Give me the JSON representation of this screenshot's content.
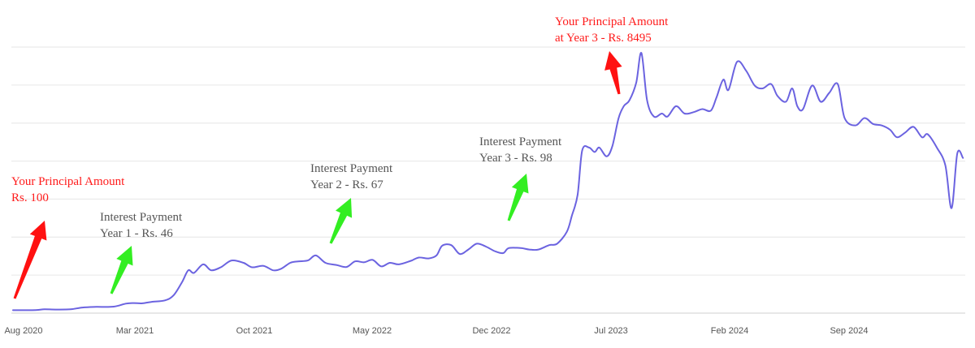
{
  "chart_data": {
    "type": "line",
    "title": "",
    "xlabel": "",
    "ylabel": "",
    "x_tick_labels": [
      "Aug 2020",
      "Mar 2021",
      "Oct 2021",
      "May 2022",
      "Dec 2022",
      "Jul 2023",
      "Feb 2024",
      "Sep 2024"
    ],
    "y_tick_labels": [],
    "grid": "horizontal",
    "colors": {
      "line": "#6b63e0",
      "red_arrow": "#ff1111",
      "green_arrow": "#33ee22",
      "red_text": "#ff1a1a",
      "gray_text": "#555555",
      "grid": "#e6e6e6"
    },
    "series": [
      {
        "values": [
          [
            "2020-08-01",
            1.0
          ],
          [
            "2020-09-10",
            1.05
          ],
          [
            "2020-09-25",
            1.3
          ],
          [
            "2020-10-15",
            1.2
          ],
          [
            "2020-11-10",
            1.3
          ],
          [
            "2020-12-01",
            1.9
          ],
          [
            "2020-12-25",
            2.1
          ],
          [
            "2021-01-25",
            2.2
          ],
          [
            "2021-02-15",
            3.2
          ],
          [
            "2021-03-01",
            3.4
          ],
          [
            "2021-03-15",
            3.3
          ],
          [
            "2021-04-01",
            3.8
          ],
          [
            "2021-04-25",
            4.3
          ],
          [
            "2021-05-10",
            6.0
          ],
          [
            "2021-05-25",
            10.5
          ],
          [
            "2021-06-05",
            14.5
          ],
          [
            "2021-06-15",
            13.6
          ],
          [
            "2021-07-01",
            16.5
          ],
          [
            "2021-07-15",
            14.5
          ],
          [
            "2021-08-01",
            15.5
          ],
          [
            "2021-08-20",
            17.8
          ],
          [
            "2021-09-10",
            17.0
          ],
          [
            "2021-09-25",
            15.5
          ],
          [
            "2021-10-15",
            16.0
          ],
          [
            "2021-11-01",
            14.5
          ],
          [
            "2021-11-15",
            15.0
          ],
          [
            "2021-12-01",
            17.0
          ],
          [
            "2021-12-15",
            17.5
          ],
          [
            "2022-01-01",
            17.8
          ],
          [
            "2022-01-15",
            19.5
          ],
          [
            "2022-02-01",
            17.0
          ],
          [
            "2022-02-20",
            16.3
          ],
          [
            "2022-03-10",
            15.6
          ],
          [
            "2022-03-25",
            17.5
          ],
          [
            "2022-04-10",
            17.2
          ],
          [
            "2022-04-25",
            18.0
          ],
          [
            "2022-05-10",
            15.8
          ],
          [
            "2022-05-25",
            17.0
          ],
          [
            "2022-06-10",
            16.5
          ],
          [
            "2022-07-01",
            17.7
          ],
          [
            "2022-07-15",
            18.8
          ],
          [
            "2022-08-01",
            18.5
          ],
          [
            "2022-08-15",
            19.5
          ],
          [
            "2022-08-25",
            22.8
          ],
          [
            "2022-09-10",
            23.0
          ],
          [
            "2022-09-25",
            20.0
          ],
          [
            "2022-10-10",
            21.5
          ],
          [
            "2022-10-25",
            23.5
          ],
          [
            "2022-11-10",
            22.5
          ],
          [
            "2022-11-25",
            21.0
          ],
          [
            "2022-12-10",
            20.3
          ],
          [
            "2022-12-20",
            22.0
          ],
          [
            "2023-01-10",
            22.0
          ],
          [
            "2023-01-25",
            21.5
          ],
          [
            "2023-02-10",
            21.5
          ],
          [
            "2023-03-01",
            23.0
          ],
          [
            "2023-03-15",
            23.5
          ],
          [
            "2023-04-01",
            27.5
          ],
          [
            "2023-04-10",
            33.0
          ],
          [
            "2023-04-20",
            40.0
          ],
          [
            "2023-04-28",
            55.0
          ],
          [
            "2023-05-10",
            56.0
          ],
          [
            "2023-05-20",
            54.5
          ],
          [
            "2023-05-28",
            56.0
          ],
          [
            "2023-06-10",
            53.0
          ],
          [
            "2023-06-20",
            56.5
          ],
          [
            "2023-07-01",
            66.0
          ],
          [
            "2023-07-10",
            70.0
          ],
          [
            "2023-07-20",
            72.0
          ],
          [
            "2023-08-01",
            78.0
          ],
          [
            "2023-08-10",
            88.0
          ],
          [
            "2023-08-20",
            72.0
          ],
          [
            "2023-09-01",
            66.5
          ],
          [
            "2023-09-15",
            67.5
          ],
          [
            "2023-09-25",
            66.5
          ],
          [
            "2023-10-10",
            70.0
          ],
          [
            "2023-10-25",
            67.5
          ],
          [
            "2023-11-10",
            68.0
          ],
          [
            "2023-11-25",
            69.0
          ],
          [
            "2023-12-10",
            68.5
          ],
          [
            "2023-12-20",
            73.0
          ],
          [
            "2024-01-01",
            79.0
          ],
          [
            "2024-01-10",
            75.5
          ],
          [
            "2024-01-25",
            85.0
          ],
          [
            "2024-02-10",
            82.0
          ],
          [
            "2024-02-25",
            77.0
          ],
          [
            "2024-03-10",
            76.0
          ],
          [
            "2024-03-25",
            77.5
          ],
          [
            "2024-04-05",
            73.5
          ],
          [
            "2024-04-20",
            71.5
          ],
          [
            "2024-05-01",
            76.0
          ],
          [
            "2024-05-10",
            70.0
          ],
          [
            "2024-05-20",
            69.0
          ],
          [
            "2024-06-05",
            77.0
          ],
          [
            "2024-06-20",
            71.5
          ],
          [
            "2024-07-05",
            74.5
          ],
          [
            "2024-07-20",
            77.5
          ],
          [
            "2024-08-01",
            66.0
          ],
          [
            "2024-08-20",
            63.5
          ],
          [
            "2024-09-05",
            66.0
          ],
          [
            "2024-09-20",
            64.0
          ],
          [
            "2024-10-05",
            63.5
          ],
          [
            "2024-10-20",
            62.0
          ],
          [
            "2024-11-01",
            59.5
          ],
          [
            "2024-11-15",
            61.0
          ],
          [
            "2024-11-30",
            63.0
          ],
          [
            "2024-12-15",
            59.5
          ],
          [
            "2024-12-25",
            60.5
          ],
          [
            "2025-01-10",
            56.0
          ],
          [
            "2025-01-25",
            50.0
          ],
          [
            "2025-02-05",
            35.5
          ],
          [
            "2025-02-15",
            54.0
          ],
          [
            "2025-02-25",
            52.5
          ]
        ]
      }
    ],
    "annotations": [
      {
        "lines": [
          "Your Principal Amount",
          "Rs. 100"
        ],
        "style": "red"
      },
      {
        "lines": [
          "Interest Payment",
          "Year 1 - Rs. 46"
        ],
        "style": "gray"
      },
      {
        "lines": [
          "Interest Payment",
          "Year 2 - Rs. 67"
        ],
        "style": "gray"
      },
      {
        "lines": [
          "Interest Payment",
          "Year 3 - Rs. 98"
        ],
        "style": "gray"
      },
      {
        "lines": [
          "Your Principal Amount",
          "at Year 3 - Rs. 8495"
        ],
        "style": "red"
      }
    ]
  }
}
